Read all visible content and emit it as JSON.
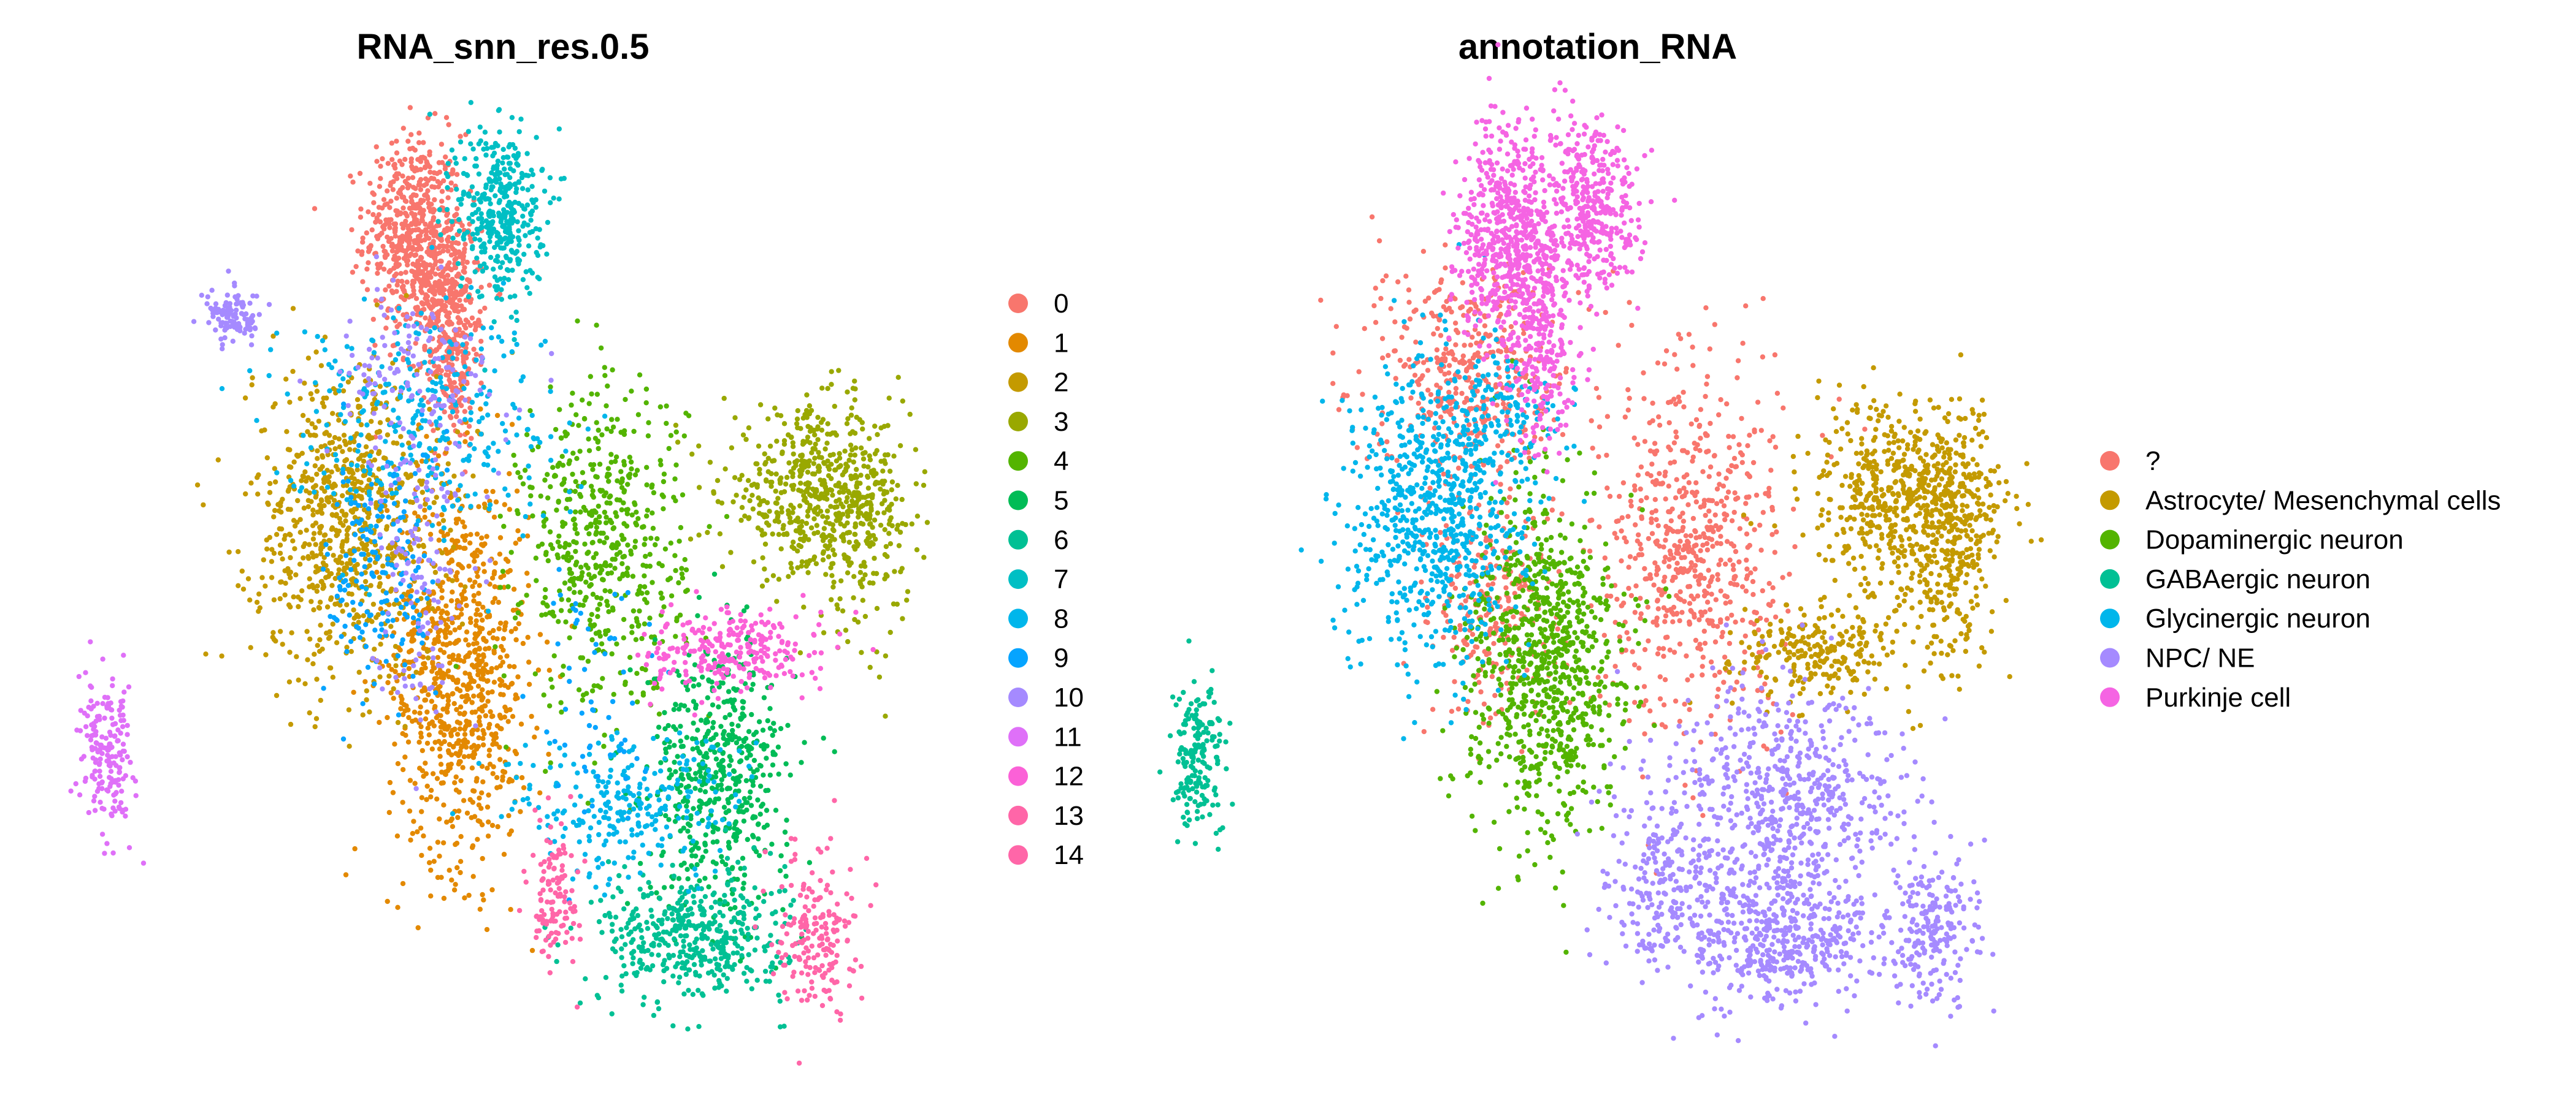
{
  "chart_data": [
    {
      "type": "scatter",
      "title": "RNA_snn_res.0.5",
      "axes_visible": false,
      "grid": false,
      "legend_position": "right",
      "point_size": "small",
      "groups": [
        {
          "name": "0",
          "color": "#F8766D",
          "blobs": [
            [
              -9.2,
              9.9,
              0.9,
              1.2,
              520
            ],
            [
              -8.1,
              8.5,
              0.7,
              0.9,
              260
            ],
            [
              -7.7,
              6.9,
              0.45,
              1.1,
              210
            ]
          ]
        },
        {
          "name": "1",
          "color": "#E38900",
          "blobs": [
            [
              -7.5,
              -0.8,
              1.3,
              2.4,
              860
            ]
          ]
        },
        {
          "name": "2",
          "color": "#C49A00",
          "blobs": [
            [
              -11.7,
              2.8,
              1.7,
              1.9,
              780
            ]
          ]
        },
        {
          "name": "3",
          "color": "#99A800",
          "blobs": [
            [
              5.6,
              3.5,
              1.7,
              1.0,
              520
            ],
            [
              7.3,
              2.6,
              0.9,
              1.3,
              180
            ]
          ]
        },
        {
          "name": "4",
          "color": "#53B400",
          "blobs": [
            [
              -2.2,
              2.2,
              1.5,
              2.0,
              560
            ]
          ]
        },
        {
          "name": "5",
          "color": "#00BC56",
          "blobs": [
            [
              2.1,
              -3.4,
              1.3,
              1.6,
              540
            ]
          ]
        },
        {
          "name": "6",
          "color": "#00C094",
          "blobs": [
            [
              1.1,
              -7.4,
              1.7,
              0.8,
              440
            ]
          ]
        },
        {
          "name": "7",
          "color": "#00BFC4",
          "blobs": [
            [
              -6.0,
              10.4,
              0.8,
              1.1,
              380
            ]
          ]
        },
        {
          "name": "8",
          "color": "#00B6EB",
          "blobs": [
            [
              -9.0,
              5.4,
              2.6,
              1.4,
              320
            ],
            [
              -1.3,
              -4.2,
              2.2,
              0.9,
              260
            ]
          ]
        },
        {
          "name": "9",
          "color": "#06A4FF",
          "blobs": [
            [
              -10.3,
              1.6,
              1.0,
              1.6,
              180
            ],
            [
              -2.5,
              -1.5,
              1.3,
              1.8,
              60
            ]
          ]
        },
        {
          "name": "10",
          "color": "#A58AFF",
          "blobs": [
            [
              -15.8,
              7.8,
              0.5,
              0.3,
              110
            ],
            [
              -9.2,
              6.4,
              1.6,
              1.0,
              120
            ],
            [
              -9.0,
              2.0,
              0.8,
              2.0,
              130
            ]
          ]
        },
        {
          "name": "11",
          "color": "#DF70F8",
          "blobs": [
            [
              -20.5,
              -3.0,
              0.5,
              0.9,
              190
            ]
          ]
        },
        {
          "name": "12",
          "color": "#FB61D7",
          "blobs": [
            [
              2.6,
              -0.4,
              1.6,
              0.5,
              260
            ]
          ]
        },
        {
          "name": "13",
          "color": "#FF66A8",
          "blobs": [
            [
              5.7,
              -7.2,
              0.7,
              1.0,
              190
            ]
          ]
        },
        {
          "name": "14",
          "color": "#FF66A8",
          "blobs": [
            [
              -4.0,
              -6.3,
              0.45,
              0.9,
              120
            ]
          ]
        }
      ],
      "legend": [
        "0",
        "1",
        "2",
        "3",
        "4",
        "5",
        "6",
        "7",
        "8",
        "9",
        "10",
        "11",
        "12",
        "13",
        "14"
      ],
      "legend_colors": [
        "#F8766D",
        "#E38900",
        "#C49A00",
        "#99A800",
        "#53B400",
        "#00BC56",
        "#00C094",
        "#00BFC4",
        "#00B6EB",
        "#06A4FF",
        "#A58AFF",
        "#DF70F8",
        "#FB61D7",
        "#FF66A8",
        "#FF66A8"
      ]
    },
    {
      "type": "scatter",
      "title": "annotation_RNA",
      "axes_visible": false,
      "grid": false,
      "legend_position": "right",
      "point_size": "small",
      "groups": [
        {
          "name": "?",
          "color": "#F8766D",
          "blobs": [
            [
              -10.7,
              6.6,
              1.7,
              1.3,
              420
            ],
            [
              -9.6,
              0.8,
              1.4,
              1.5,
              260
            ],
            [
              -2.3,
              2.2,
              1.6,
              2.2,
              640
            ]
          ]
        },
        {
          "name": "Astrocyte/ Mesenchymal cells",
          "color": "#C49A00",
          "blobs": [
            [
              5.7,
              3.4,
              1.7,
              1.1,
              620
            ],
            [
              7.2,
              1.8,
              0.8,
              1.5,
              220
            ],
            [
              2.2,
              -0.4,
              1.6,
              0.6,
              240
            ]
          ]
        },
        {
          "name": "Dopaminergic neuron",
          "color": "#53B400",
          "blobs": [
            [
              -7.7,
              -0.8,
              1.4,
              2.1,
              860
            ]
          ]
        },
        {
          "name": "GABAergic neuron",
          "color": "#00C094",
          "blobs": [
            [
              -20.5,
              -3.0,
              0.5,
              0.9,
              180
            ]
          ]
        },
        {
          "name": "Glycinergic neuron",
          "color": "#00B6EB",
          "blobs": [
            [
              -11.8,
              3.0,
              1.6,
              1.9,
              720
            ],
            [
              -9.3,
              5.6,
              1.2,
              0.9,
              120
            ]
          ]
        },
        {
          "name": "NPC/ NE",
          "color": "#A58AFF",
          "blobs": [
            [
              1.2,
              -4.1,
              2.1,
              1.5,
              620
            ],
            [
              1.0,
              -7.4,
              1.8,
              0.8,
              420
            ],
            [
              6.5,
              -7.2,
              0.8,
              1.1,
              200
            ],
            [
              -3.3,
              -6.0,
              1.1,
              1.2,
              220
            ]
          ]
        },
        {
          "name": "Purkinje cell",
          "color": "#F564E3",
          "blobs": [
            [
              -9.1,
              9.9,
              0.9,
              1.3,
              560
            ],
            [
              -6.0,
              10.4,
              0.8,
              1.1,
              380
            ],
            [
              -7.8,
              7.4,
              0.6,
              1.3,
              260
            ]
          ]
        }
      ],
      "legend": [
        "?",
        "Astrocyte/ Mesenchymal cells",
        "Dopaminergic neuron",
        "GABAergic neuron",
        "Glycinergic neuron",
        "NPC/ NE",
        "Purkinje cell"
      ],
      "legend_colors": [
        "#F8766D",
        "#C49A00",
        "#53B400",
        "#00C094",
        "#00B6EB",
        "#A58AFF",
        "#F564E3"
      ]
    }
  ]
}
